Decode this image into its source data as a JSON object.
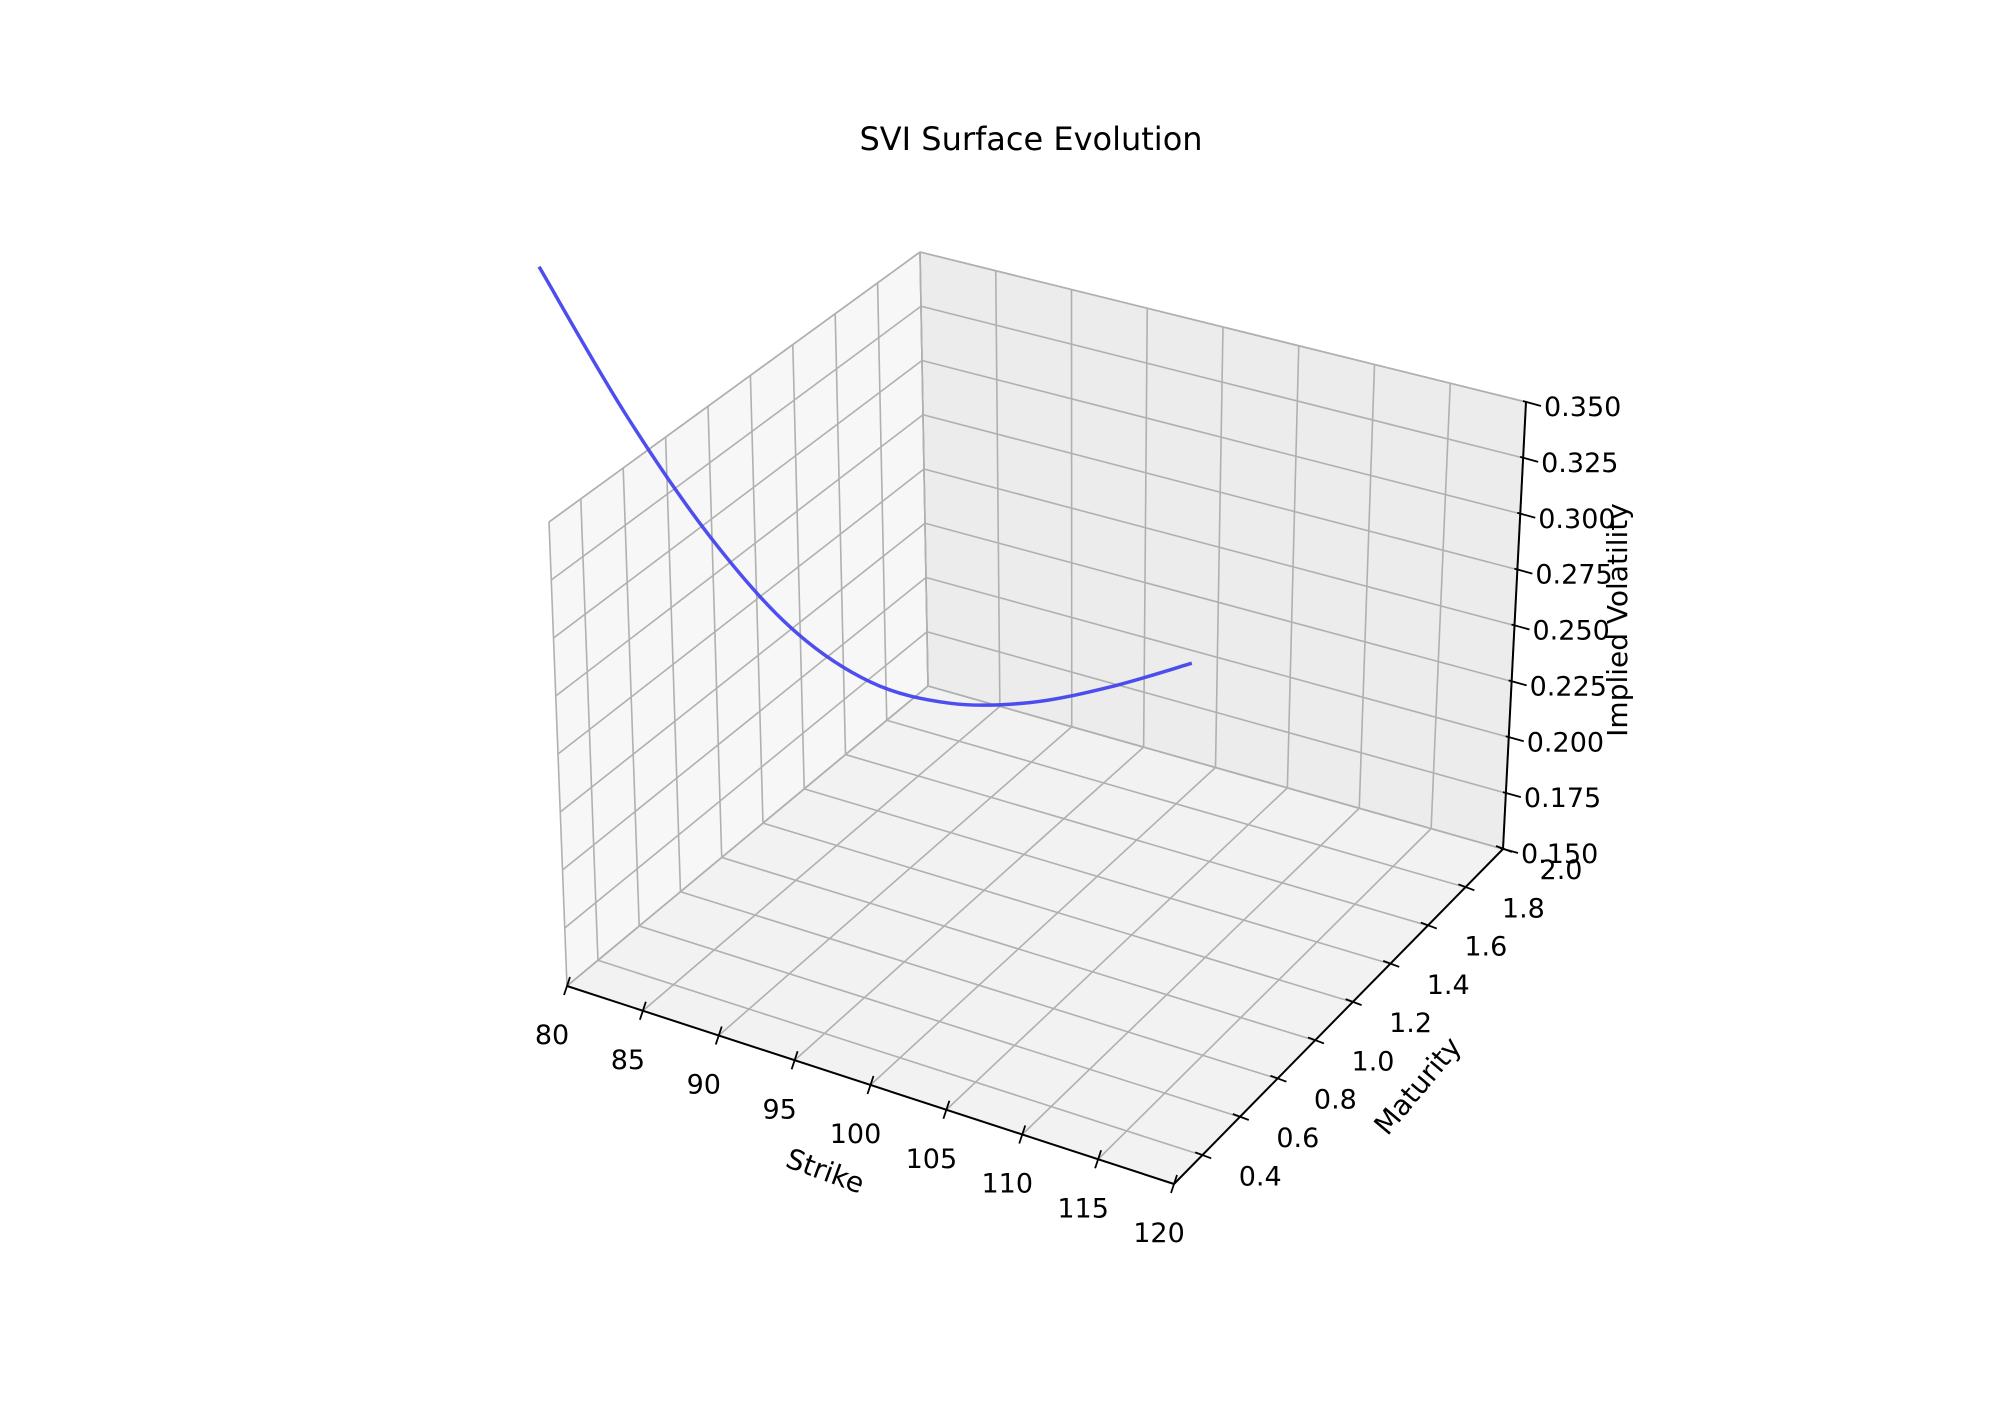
{
  "chart_data": {
    "type": "line",
    "projection": "3d",
    "title": "SVI Surface Evolution",
    "xlabel": "Strike",
    "ylabel": "Maturity",
    "zlabel": "Implied Volatility",
    "xlim": [
      80,
      120
    ],
    "ylim": [
      0.25,
      2.0
    ],
    "zlim": [
      0.15,
      0.35
    ],
    "xticks": [
      "80",
      "85",
      "90",
      "95",
      "100",
      "105",
      "110",
      "115",
      "120"
    ],
    "yticks": [
      "0.4",
      "0.6",
      "0.8",
      "1.0",
      "1.2",
      "1.4",
      "1.6",
      "1.8",
      "2.0"
    ],
    "zticks": [
      "0.150",
      "0.175",
      "0.200",
      "0.225",
      "0.250",
      "0.275",
      "0.300",
      "0.325",
      "0.350"
    ],
    "grid": true,
    "line_color": "#4444ee",
    "series": [
      {
        "maturity": 0.25,
        "x": [
          80,
          85,
          90,
          95,
          100,
          105,
          110,
          115,
          120
        ],
        "z": [
          0.46,
          0.405,
          0.362,
          0.332,
          0.318,
          0.318,
          0.327,
          0.342,
          0.36
        ]
      }
    ]
  }
}
